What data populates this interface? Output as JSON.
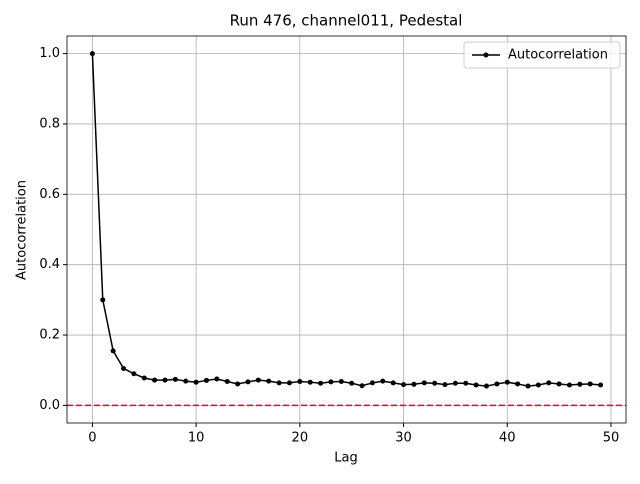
{
  "chart_data": {
    "type": "line",
    "title": "Run 476, channel011, Pedestal",
    "xlabel": "Lag",
    "ylabel": "Autocorrelation",
    "x": [
      0,
      1,
      2,
      3,
      4,
      5,
      6,
      7,
      8,
      9,
      10,
      11,
      12,
      13,
      14,
      15,
      16,
      17,
      18,
      19,
      20,
      21,
      22,
      23,
      24,
      25,
      26,
      27,
      28,
      29,
      30,
      31,
      32,
      33,
      34,
      35,
      36,
      37,
      38,
      39,
      40,
      41,
      42,
      43,
      44,
      45,
      46,
      47,
      48,
      49
    ],
    "series": [
      {
        "name": "Autocorrelation",
        "color": "#000000",
        "values": [
          1.0,
          0.3,
          0.155,
          0.105,
          0.09,
          0.078,
          0.072,
          0.072,
          0.074,
          0.069,
          0.066,
          0.071,
          0.075,
          0.068,
          0.061,
          0.067,
          0.072,
          0.069,
          0.064,
          0.064,
          0.068,
          0.066,
          0.063,
          0.067,
          0.068,
          0.063,
          0.056,
          0.064,
          0.069,
          0.064,
          0.059,
          0.06,
          0.064,
          0.063,
          0.059,
          0.063,
          0.063,
          0.058,
          0.055,
          0.061,
          0.066,
          0.061,
          0.055,
          0.058,
          0.064,
          0.061,
          0.058,
          0.06,
          0.061,
          0.058
        ]
      }
    ],
    "hline": {
      "value": 0,
      "color": "#ff0000"
    },
    "xlim": [
      -2.45,
      51.45
    ],
    "xticks": [
      0,
      10,
      20,
      30,
      40,
      50
    ],
    "ylim": [
      -0.05,
      1.05
    ],
    "yticks": [
      {
        "value": 0,
        "label": "0.0"
      },
      {
        "value": 0.2,
        "label": "0.2"
      },
      {
        "value": 0.4,
        "label": "0.4"
      },
      {
        "value": 0.6,
        "label": "0.6"
      },
      {
        "value": 0.8,
        "label": "0.8"
      },
      {
        "value": 1.0,
        "label": "1.0"
      }
    ],
    "grid": true,
    "legend": "upper-right"
  }
}
